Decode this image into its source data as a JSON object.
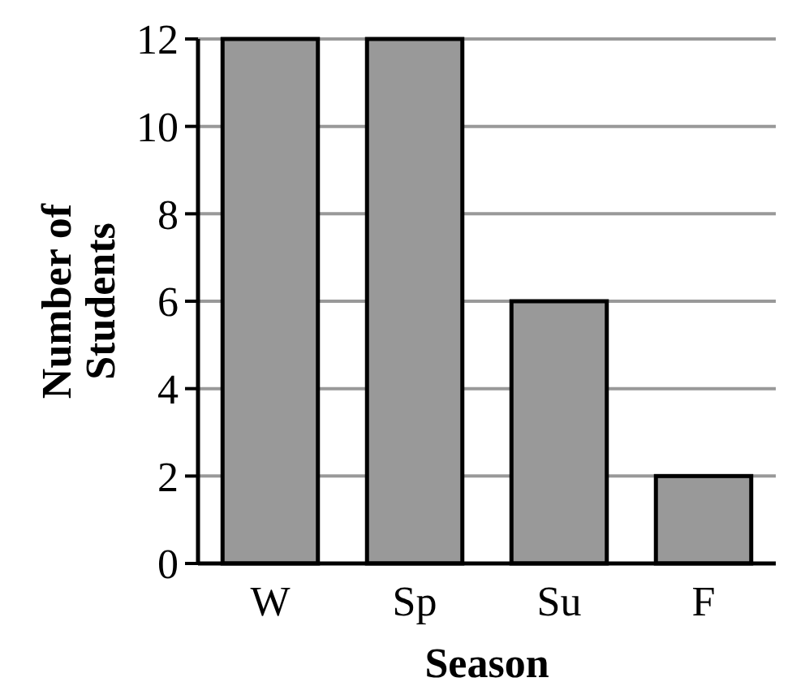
{
  "chart_data": {
    "type": "bar",
    "xlabel": "Season",
    "ylabel": "Number of Students",
    "categories": [
      "W",
      "Sp",
      "Su",
      "F"
    ],
    "values": [
      12,
      12,
      6,
      2
    ],
    "color": "#999999",
    "ylim": [
      0,
      12
    ],
    "yticks": [
      0,
      2,
      4,
      6,
      8,
      10,
      12
    ],
    "grid": "y"
  }
}
